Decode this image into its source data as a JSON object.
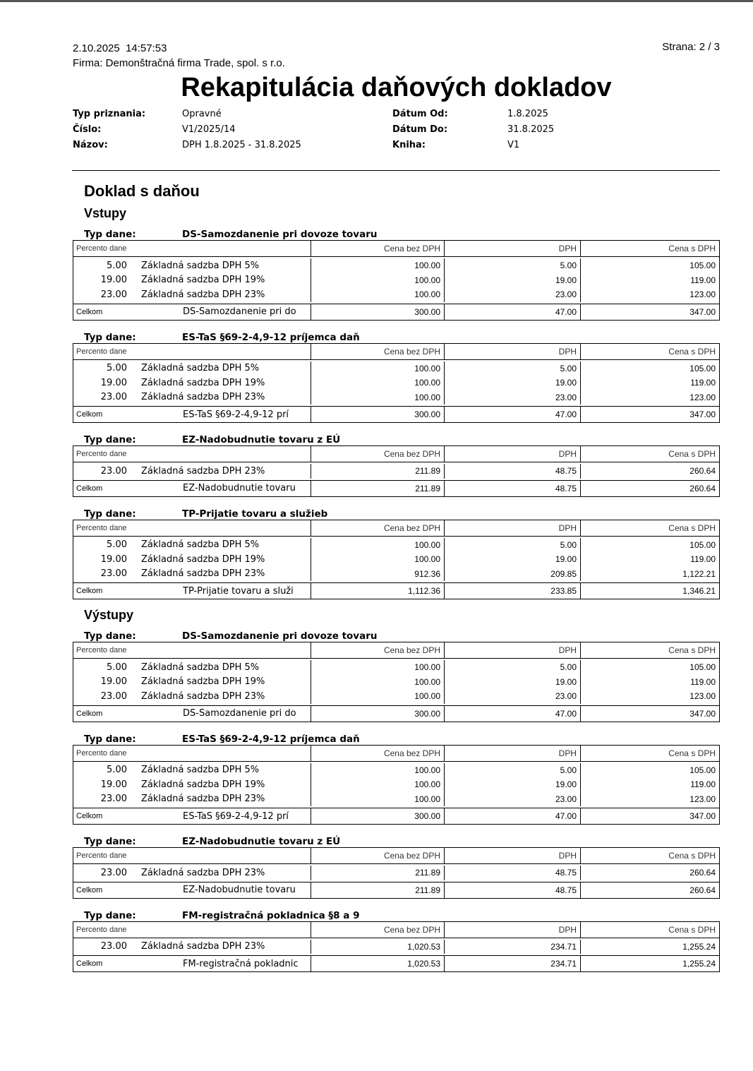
{
  "header": {
    "datetime": "2.10.2025  14:57:53",
    "page": "Strana: 2 / 3",
    "company": "Firma: Demonštračná firma Trade, spol. s r.o.",
    "title": "Rekapitulácia daňových dokladov"
  },
  "info": {
    "rows": [
      [
        "Typ priznania:",
        "Opravné",
        "Dátum Od:",
        "1.8.2025"
      ],
      [
        "Číslo:",
        "V1/2025/14",
        "Dátum Do:",
        "31.8.2025"
      ],
      [
        "Názov:",
        "DPH 1.8.2025 - 31.8.2025",
        "Kniha:",
        "V1"
      ]
    ]
  },
  "section_title": "Doklad s daňou",
  "groups": [
    {
      "title": "Vstupy",
      "tables": [
        {
          "type_label": "Typ dane:",
          "type": "DS-Samozdanenie pri dovoze tovaru",
          "columns": [
            "Percento dane",
            "Cena bez DPH",
            "DPH",
            "Cena s DPH"
          ],
          "rows": [
            [
              "5.00",
              "Základná sadzba DPH 5%",
              "100.00",
              "5.00",
              "105.00"
            ],
            [
              "19.00",
              "Základná sadzba DPH 19%",
              "100.00",
              "19.00",
              "119.00"
            ],
            [
              "23.00",
              "Základná sadzba DPH 23%",
              "100.00",
              "23.00",
              "123.00"
            ]
          ],
          "total": [
            "Celkom",
            "DS-Samozdanenie pri do",
            "300.00",
            "47.00",
            "347.00"
          ]
        },
        {
          "type_label": "Typ dane:",
          "type": "ES-TaS §69-2-4,9-12 príjemca daň",
          "columns": [
            "Percento dane",
            "Cena bez DPH",
            "DPH",
            "Cena s DPH"
          ],
          "rows": [
            [
              "5.00",
              "Základná sadzba DPH 5%",
              "100.00",
              "5.00",
              "105.00"
            ],
            [
              "19.00",
              "Základná sadzba DPH 19%",
              "100.00",
              "19.00",
              "119.00"
            ],
            [
              "23.00",
              "Základná sadzba DPH 23%",
              "100.00",
              "23.00",
              "123.00"
            ]
          ],
          "total": [
            "Celkom",
            "ES-TaS §69-2-4,9-12 prí",
            "300.00",
            "47.00",
            "347.00"
          ]
        },
        {
          "type_label": "Typ dane:",
          "type": "EZ-Nadobudnutie tovaru z EÚ",
          "columns": [
            "Percento dane",
            "Cena bez DPH",
            "DPH",
            "Cena s DPH"
          ],
          "rows": [
            [
              "23.00",
              "Základná sadzba DPH 23%",
              "211.89",
              "48.75",
              "260.64"
            ]
          ],
          "total": [
            "Celkom",
            "EZ-Nadobudnutie tovaru",
            "211.89",
            "48.75",
            "260.64"
          ]
        },
        {
          "type_label": "Typ dane:",
          "type": "TP-Prijatie tovaru a služieb",
          "columns": [
            "Percento dane",
            "Cena bez DPH",
            "DPH",
            "Cena s DPH"
          ],
          "rows": [
            [
              "5.00",
              "Základná sadzba DPH 5%",
              "100.00",
              "5.00",
              "105.00"
            ],
            [
              "19.00",
              "Základná sadzba DPH 19%",
              "100.00",
              "19.00",
              "119.00"
            ],
            [
              "23.00",
              "Základná sadzba DPH 23%",
              "912.36",
              "209.85",
              "1,122.21"
            ]
          ],
          "total": [
            "Celkom",
            "TP-Prijatie tovaru a služi",
            "1,112.36",
            "233.85",
            "1,346.21"
          ]
        }
      ]
    },
    {
      "title": "Výstupy",
      "tables": [
        {
          "type_label": "Typ dane:",
          "type": "DS-Samozdanenie pri dovoze tovaru",
          "columns": [
            "Percento dane",
            "Cena bez DPH",
            "DPH",
            "Cena s DPH"
          ],
          "rows": [
            [
              "5.00",
              "Základná sadzba DPH 5%",
              "100.00",
              "5.00",
              "105.00"
            ],
            [
              "19.00",
              "Základná sadzba DPH 19%",
              "100.00",
              "19.00",
              "119.00"
            ],
            [
              "23.00",
              "Základná sadzba DPH 23%",
              "100.00",
              "23.00",
              "123.00"
            ]
          ],
          "total": [
            "Celkom",
            "DS-Samozdanenie pri do",
            "300.00",
            "47.00",
            "347.00"
          ]
        },
        {
          "type_label": "Typ dane:",
          "type": "ES-TaS §69-2-4,9-12 príjemca daň",
          "columns": [
            "Percento dane",
            "Cena bez DPH",
            "DPH",
            "Cena s DPH"
          ],
          "rows": [
            [
              "5.00",
              "Základná sadzba DPH 5%",
              "100.00",
              "5.00",
              "105.00"
            ],
            [
              "19.00",
              "Základná sadzba DPH 19%",
              "100.00",
              "19.00",
              "119.00"
            ],
            [
              "23.00",
              "Základná sadzba DPH 23%",
              "100.00",
              "23.00",
              "123.00"
            ]
          ],
          "total": [
            "Celkom",
            "ES-TaS §69-2-4,9-12 prí",
            "300.00",
            "47.00",
            "347.00"
          ]
        },
        {
          "type_label": "Typ dane:",
          "type": "EZ-Nadobudnutie tovaru z EÚ",
          "columns": [
            "Percento dane",
            "Cena bez DPH",
            "DPH",
            "Cena s DPH"
          ],
          "rows": [
            [
              "23.00",
              "Základná sadzba DPH 23%",
              "211.89",
              "48.75",
              "260.64"
            ]
          ],
          "total": [
            "Celkom",
            "EZ-Nadobudnutie tovaru",
            "211.89",
            "48.75",
            "260.64"
          ]
        },
        {
          "type_label": "Typ dane:",
          "type": "FM-registračná pokladnica §8 a 9",
          "columns": [
            "Percento dane",
            "Cena bez DPH",
            "DPH",
            "Cena s DPH"
          ],
          "rows": [
            [
              "23.00",
              "Základná sadzba DPH 23%",
              "1,020.53",
              "234.71",
              "1,255.24"
            ]
          ],
          "total": [
            "Celkom",
            "FM-registračná pokladnic",
            "1,020.53",
            "234.71",
            "1,255.24"
          ]
        }
      ]
    }
  ]
}
